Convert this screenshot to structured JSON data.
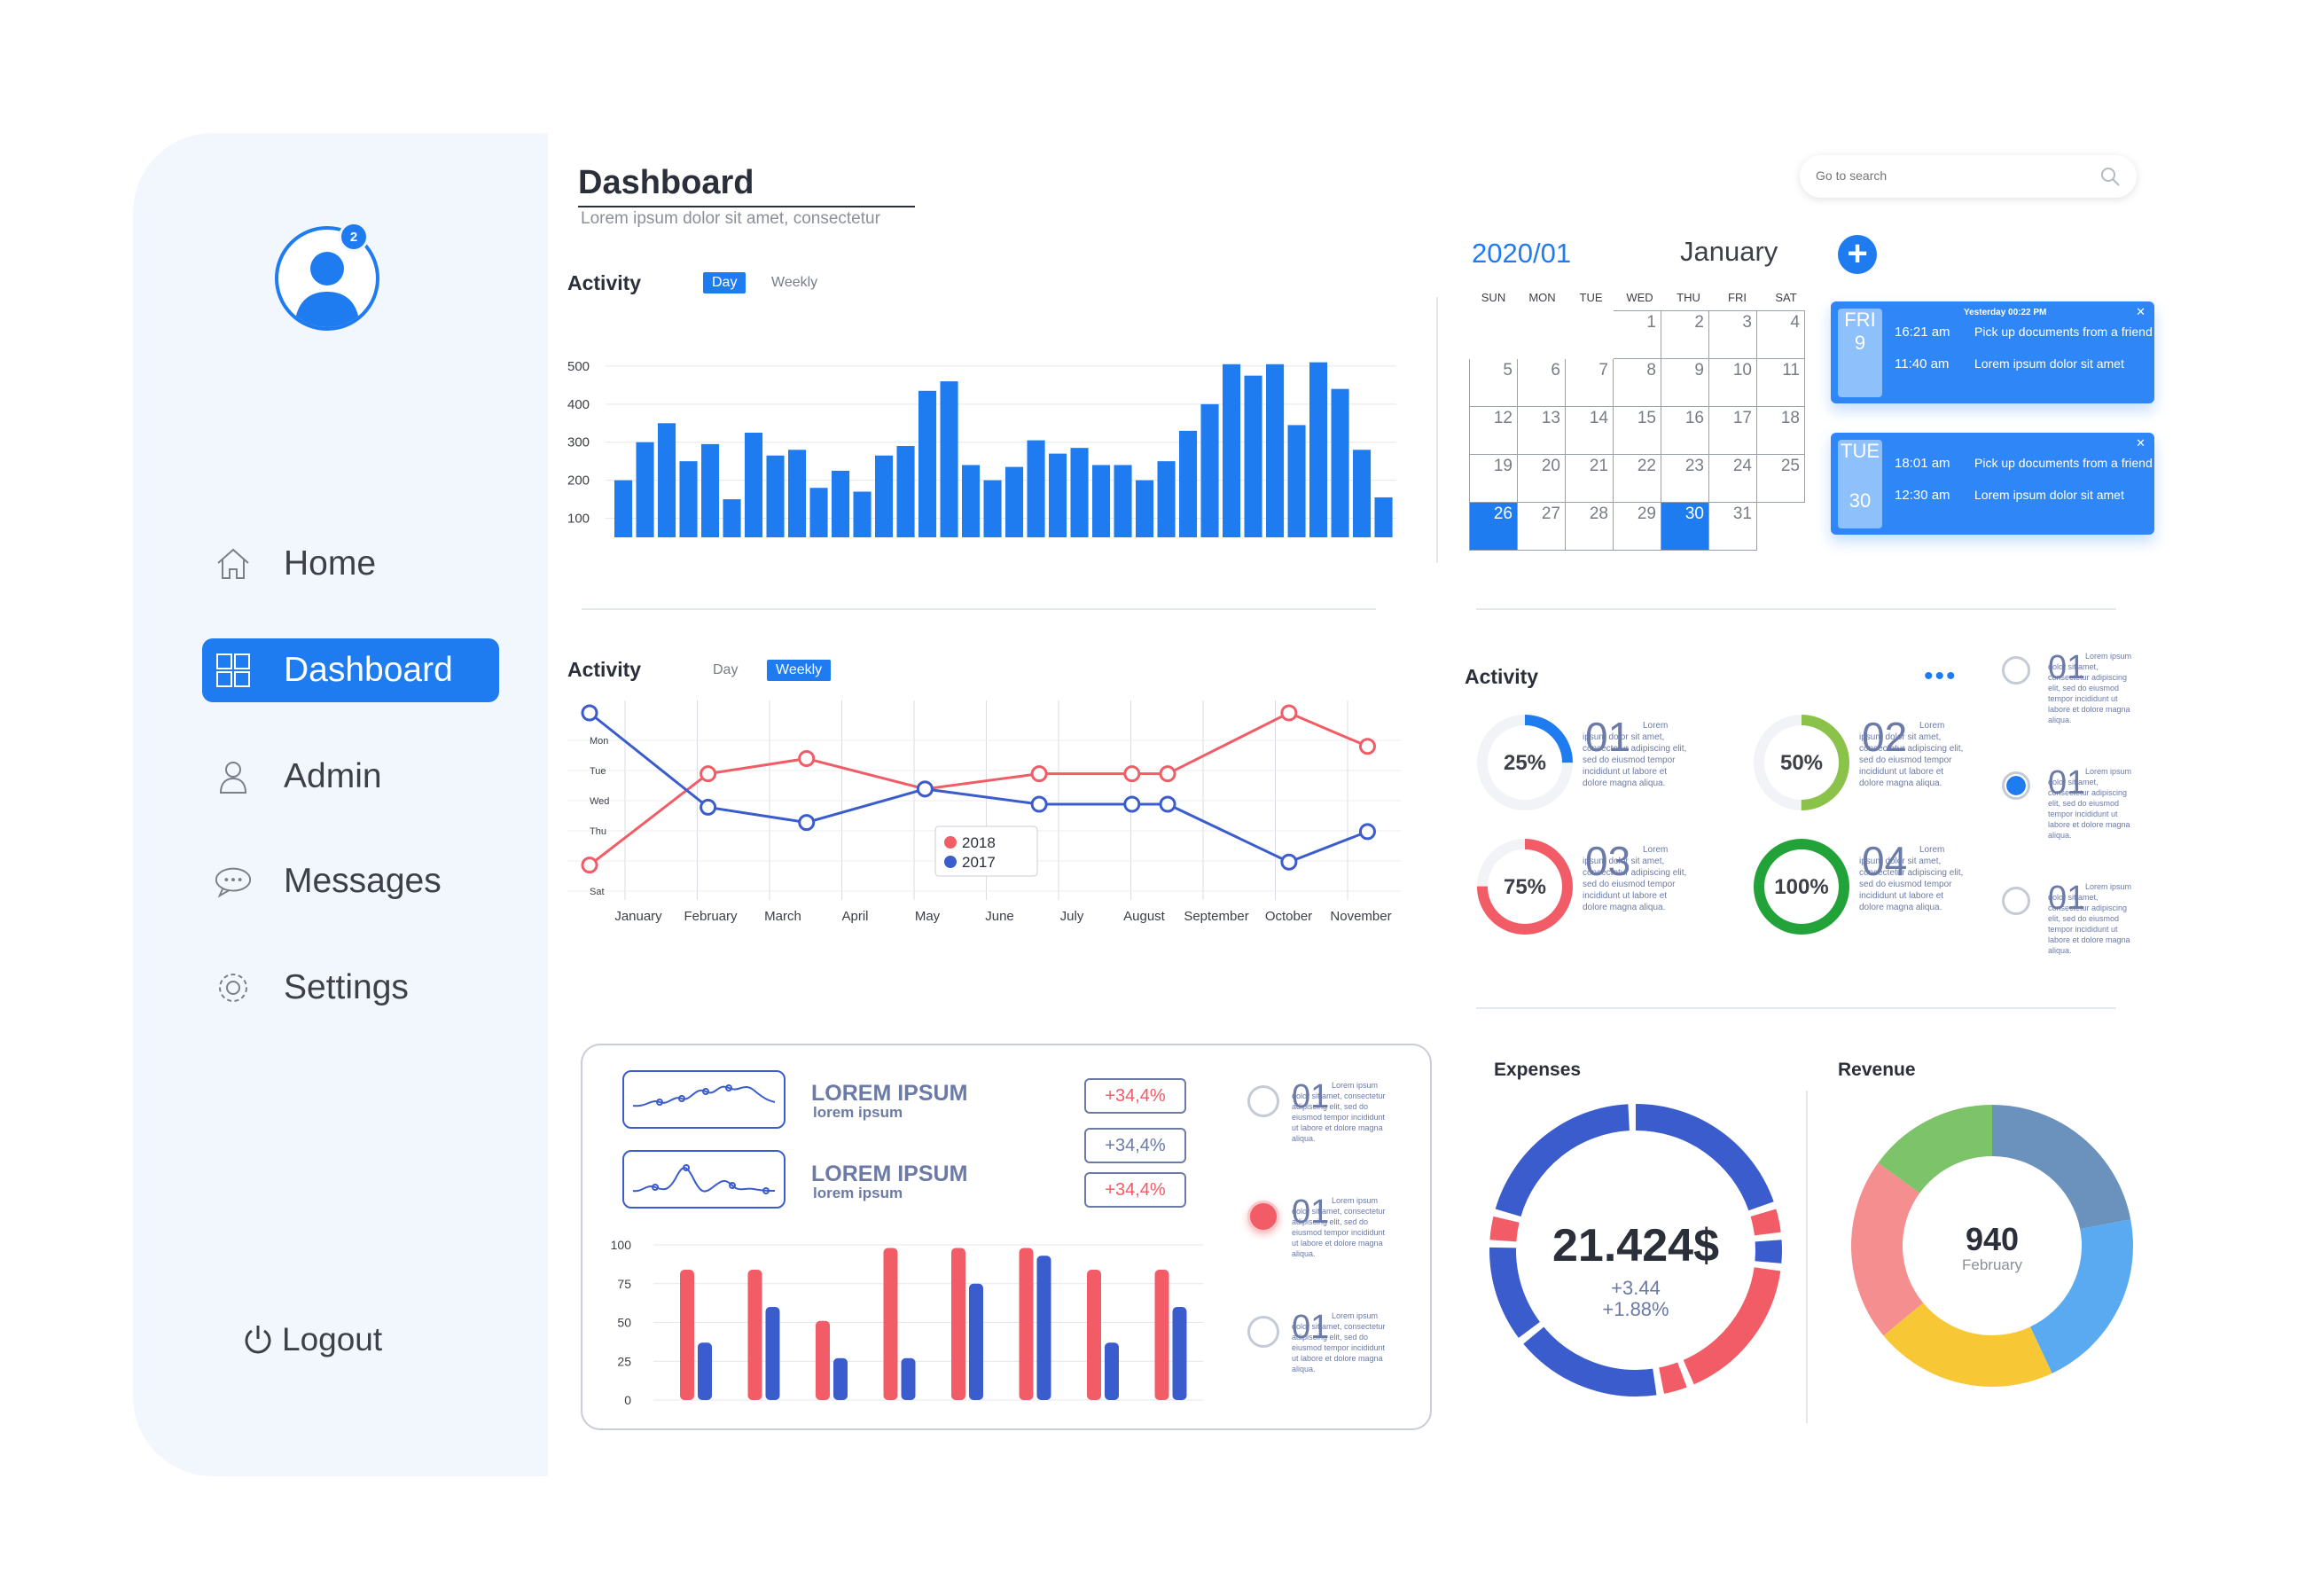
{
  "sidebar": {
    "notification_count": "2",
    "items": [
      {
        "label": "Home",
        "icon": "home-icon"
      },
      {
        "label": "Dashboard",
        "icon": "grid-icon"
      },
      {
        "label": "Admin",
        "icon": "user-icon"
      },
      {
        "label": "Messages",
        "icon": "chat-icon"
      },
      {
        "label": "Settings",
        "icon": "gear-icon"
      }
    ],
    "logout_label": "Logout"
  },
  "header": {
    "title": "Dashboard",
    "subtitle": "Lorem ipsum dolor sit amet, consectetur",
    "search_placeholder": "Go to search"
  },
  "activity_bar": {
    "label": "Activity",
    "tab_day": "Day",
    "tab_weekly": "Weekly"
  },
  "activity_line": {
    "label": "Activity",
    "tab_day": "Day",
    "tab_weekly": "Weekly"
  },
  "calendar": {
    "year_month": "2020/01",
    "month": "January",
    "add_label": "+",
    "dow": [
      "SUN",
      "MON",
      "TUE",
      "WED",
      "THU",
      "FRI",
      "SAT"
    ],
    "weeks": [
      [
        "",
        "",
        "",
        "1",
        "2",
        "3",
        "4"
      ],
      [
        "5",
        "6",
        "7",
        "8",
        "9",
        "10",
        "11"
      ],
      [
        "12",
        "13",
        "14",
        "15",
        "16",
        "17",
        "18"
      ],
      [
        "19",
        "20",
        "21",
        "22",
        "23",
        "24",
        "25"
      ],
      [
        "26",
        "27",
        "28",
        "29",
        "30",
        "31",
        ""
      ]
    ],
    "selected": [
      "26",
      "30"
    ],
    "events": [
      {
        "weekday": "FRI",
        "day": "9",
        "header": "Yesterday 00:22  PM",
        "items": [
          {
            "time": "16:21 am",
            "text": "Pick up documents from a friend"
          },
          {
            "time": "11:40 am",
            "text": "Lorem ipsum dolor sit amet"
          }
        ]
      },
      {
        "weekday": "TUE",
        "day": "30",
        "header": "",
        "items": [
          {
            "time": "18:01 am",
            "text": "Pick up documents from a friend"
          },
          {
            "time": "12:30 am",
            "text": "Lorem ipsum dolor sit amet"
          }
        ]
      }
    ]
  },
  "activity_rings": {
    "label": "Activity",
    "more_icon": "more-dots-icon",
    "rings": [
      {
        "pct": "25%",
        "value": 0.25,
        "color": "#1e7cf0",
        "num": "01"
      },
      {
        "pct": "50%",
        "value": 0.5,
        "color": "#8bc34a",
        "num": "02"
      },
      {
        "pct": "75%",
        "value": 0.75,
        "color": "#f25c66",
        "num": "03"
      },
      {
        "pct": "100%",
        "value": 1.0,
        "color": "#22a33a",
        "num": "04"
      }
    ],
    "ring_text": "Lorem ipsum dolor sit amet, consectetur adipiscing elit, sed do eiusmod tempor incididunt ut labore et dolore magna aliqua.",
    "options": [
      {
        "num": "01",
        "selected": false
      },
      {
        "num": "01",
        "selected": true
      },
      {
        "num": "01",
        "selected": false
      }
    ],
    "option_text": "Lorem ipsum dolor sit amet, consectetur adipiscing elit, sed do eiusmod tempor incididunt ut labore et dolore magna aliqua."
  },
  "summary_card": {
    "rows": [
      {
        "title": "LOREM IPSUM",
        "sub": "lorem ipsum"
      },
      {
        "title": "LOREM IPSUM",
        "sub": "lorem ipsum"
      }
    ],
    "changes": [
      "+34,4%",
      "+34,4%",
      "+34,4%"
    ],
    "options": [
      {
        "num": "01",
        "selected": false
      },
      {
        "num": "01",
        "selected": true
      },
      {
        "num": "01",
        "selected": false
      }
    ],
    "option_text": "Lorem ipsum dolor sit amet, consectetur adipiscing elit, sed do eiusmod tempor incididunt ut labore et dolore magna aliqua."
  },
  "expenses": {
    "label": "Expenses",
    "amount": "21.424$",
    "delta1": "+3.44",
    "delta2": "+1.88%"
  },
  "revenue": {
    "label": "Revenue",
    "value": "940",
    "period": "February"
  },
  "chart_data": [
    {
      "type": "bar",
      "title": "",
      "xlabel": "",
      "ylabel": "",
      "ylim": [
        50,
        600
      ],
      "yticks": [
        100,
        200,
        300,
        400,
        500
      ],
      "color": "#1e7cf0",
      "values": [
        200,
        300,
        350,
        250,
        295,
        150,
        325,
        265,
        280,
        180,
        225,
        170,
        265,
        290,
        435,
        460,
        240,
        200,
        235,
        305,
        270,
        285,
        240,
        240,
        200,
        250,
        330,
        400,
        505,
        475,
        505,
        345,
        510,
        440,
        280,
        155
      ]
    },
    {
      "type": "line",
      "title": "",
      "categories": [
        "January",
        "February",
        "March",
        "April",
        "May",
        "June",
        "July",
        "August",
        "September",
        "October",
        "November"
      ],
      "yticks": [
        "Mon",
        "Tue",
        "Wed",
        "Thu",
        "",
        "Sat"
      ],
      "ylim": [
        0,
        6
      ],
      "legend_placement": "bottom-center",
      "series": [
        {
          "name": "2018",
          "color": "#f25c66",
          "x": [
            0,
            1.66,
            3.04,
            4.7,
            6.3,
            7.6,
            8.1,
            9.8,
            10.9
          ],
          "y": [
            5.0,
            2.0,
            1.5,
            2.5,
            2.0,
            2.0,
            2.0,
            0.0,
            1.1
          ]
        },
        {
          "name": "2017",
          "color": "#3b5ccc",
          "x": [
            0,
            1.66,
            3.04,
            4.7,
            6.3,
            7.6,
            8.1,
            9.8,
            10.9
          ],
          "y": [
            0.0,
            3.1,
            3.6,
            2.5,
            3.0,
            3.0,
            3.0,
            4.9,
            3.9
          ]
        }
      ]
    },
    {
      "type": "bar",
      "title": "",
      "yticks": [
        0,
        25,
        50,
        75,
        100
      ],
      "ylim": [
        0,
        100
      ],
      "series": [
        {
          "name": "",
          "color": "#f25c66",
          "values": [
            84,
            84,
            51,
            98,
            98,
            98,
            84,
            84
          ]
        },
        {
          "name": "",
          "color": "#3b5ccc",
          "values": [
            37,
            60,
            27,
            27,
            75,
            93,
            37,
            60
          ]
        }
      ]
    },
    {
      "type": "pie",
      "title": "Expenses",
      "slices": [
        {
          "color": "#3b5ccc",
          "value": 18
        },
        {
          "color": "#f25c66",
          "value": 3
        },
        {
          "color": "#3b5ccc",
          "value": 3
        },
        {
          "color": "#f25c66",
          "value": 15
        },
        {
          "color": "#f25c66",
          "value": 3
        },
        {
          "color": "#3b5ccc",
          "value": 15
        },
        {
          "color": "#3b5ccc",
          "value": 10
        },
        {
          "color": "#f25c66",
          "value": 3
        },
        {
          "color": "#3b5ccc",
          "value": 18
        }
      ]
    },
    {
      "type": "pie",
      "title": "Revenue",
      "slices": [
        {
          "color": "#6b92bd",
          "value": 22
        },
        {
          "color": "#5aaaf2",
          "value": 21
        },
        {
          "color": "#f7c736",
          "value": 21
        },
        {
          "color": "#f58f8f",
          "value": 21
        },
        {
          "color": "#7cc36a",
          "value": 15
        }
      ]
    }
  ]
}
